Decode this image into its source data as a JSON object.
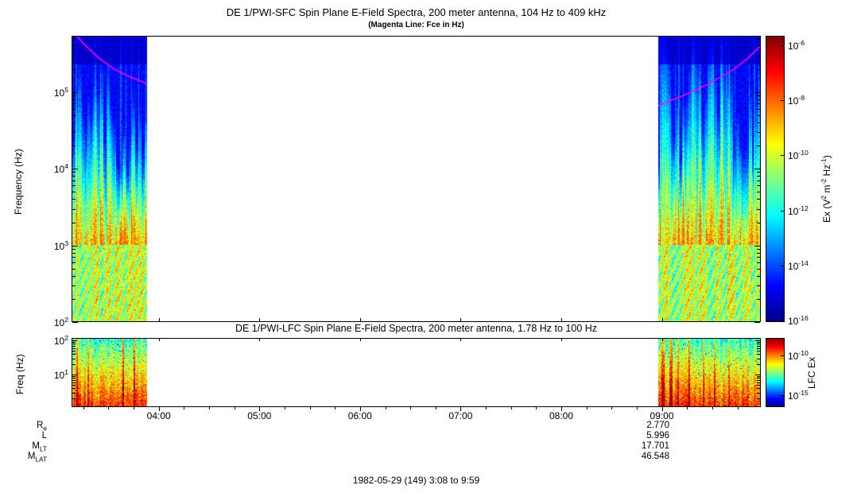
{
  "page": {
    "footer": "1982-05-29 (149) 3:08 to 9:59"
  },
  "orbit": {
    "rows": [
      {
        "label": "R_e",
        "value": "2.770"
      },
      {
        "label": "L",
        "value": "5.996"
      },
      {
        "label": "M_LT",
        "value": "17.701"
      },
      {
        "label": "M_LAT",
        "value": "46.548"
      }
    ]
  },
  "chart_data": [
    {
      "type": "heatmap",
      "panel": "SFC",
      "title": "DE 1/PWI-SFC  Spin Plane E-Field Spectra, 200 meter antenna, 104 Hz to 409 kHz",
      "subtitle": "(Magenta Line: Fce in Hz)",
      "xlabel": "Time (UT), 1982-05-29 (day 149), 3:08 to 9:59",
      "ylabel": "Frequency (Hz)",
      "y_scale": "log",
      "y_range_hz": [
        104,
        409000
      ],
      "y_tick_labels": [
        "10^5",
        "10^4",
        "10^3",
        "10^2"
      ],
      "x_start_hour": 3.1333,
      "x_end_hour": 9.9833,
      "x_tick_hours": [
        4,
        5,
        6,
        7,
        8,
        9
      ],
      "x_tick_labels": [
        "04:00",
        "05:00",
        "06:00",
        "07:00",
        "08:00",
        "09:00"
      ],
      "colorbar": {
        "label": "Ex (V^2 m^-2 Hz^-1)",
        "scale": "log",
        "range": [
          1e-16,
          1e-06
        ],
        "tick_labels": [
          "10^-6",
          "10^-8",
          "10^-10",
          "10^-12",
          "10^-14",
          "10^-16"
        ],
        "colormap": "jet"
      },
      "data_intervals_hours": [
        [
          3.1333,
          3.885
        ],
        [
          8.965,
          9.9833
        ]
      ],
      "data_intervals_ut": [
        [
          "3:08",
          "3:53"
        ],
        [
          "8:58",
          "9:59"
        ]
      ],
      "gap_note": "white region = no data between ~3:53 and ~8:58 UT; narrow white receiver-band gap near 1 kHz",
      "receiver_gap_band_hz": [
        900,
        1100
      ],
      "overlay_line": {
        "name": "Fce (electron cyclotron frequency)",
        "color": "#ff00ff",
        "segments_hour_hz": [
          [
            [
              3.1333,
              640000
            ],
            [
              3.25,
              430000
            ],
            [
              3.4,
              280000
            ],
            [
              3.55,
              200000
            ],
            [
              3.7,
              160000
            ],
            [
              3.885,
              128000
            ]
          ],
          [
            [
              8.965,
              66000
            ],
            [
              9.1,
              78000
            ],
            [
              9.3,
              100000
            ],
            [
              9.5,
              135000
            ],
            [
              9.7,
              190000
            ],
            [
              9.85,
              270000
            ],
            [
              9.9833,
              400000
            ]
          ]
        ]
      },
      "content_summary": "Bursty broadband electric-field emissions during 3:08-3:53 and 8:58-9:59 UT: intense (green-yellow, ~1e-11 to 1e-9 V^2 m^-2 Hz^-1) below ~1 kHz, vertical burst columns reaching 10^4-10^5 Hz, dark blue background (~1e-15) at high frequencies; magenta Fce line descends from ~400 kHz toward ~130 kHz in the first interval and rises from ~70 kHz to ~400 kHz in the second."
    },
    {
      "type": "heatmap",
      "panel": "LFC",
      "title": "DE 1/PWI-LFC  Spin Plane E-Field Spectra, 200 meter antenna, 1.78 Hz to 100 Hz",
      "ylabel": "Freq (Hz)",
      "y_scale": "log",
      "y_range_hz": [
        1.78,
        100
      ],
      "y_tick_labels": [
        "10^2",
        "10^1"
      ],
      "shares_x_with": "SFC panel (3:08 to 9:59 UT)",
      "colorbar": {
        "label": "LFC Ex",
        "scale": "log",
        "tick_labels": [
          "10^-10",
          "10^-15"
        ],
        "colormap": "jet"
      },
      "data_intervals_hours": [
        [
          3.1333,
          3.885
        ],
        [
          8.965,
          9.9833
        ]
      ],
      "content_summary": "Intense low-frequency power during the same two intervals; yellow-red (strongest) below ~10 Hz, green-cyan near 100 Hz, white data gap between ~3:53 and ~8:58 UT."
    }
  ]
}
